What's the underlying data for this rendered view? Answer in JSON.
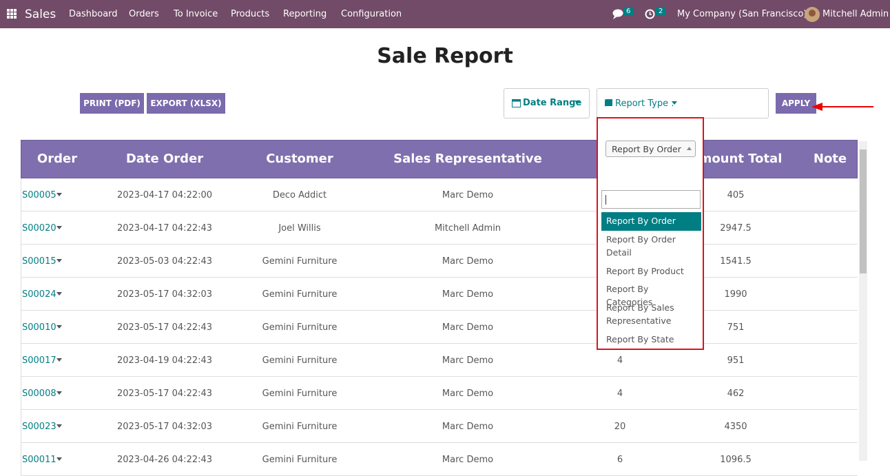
{
  "navbar": {
    "app": "Sales",
    "menu": [
      "Dashboard",
      "Orders",
      "To Invoice",
      "Products",
      "Reporting",
      "Configuration"
    ],
    "messages_badge": 6,
    "activities_badge": 2,
    "company": "My Company (San Francisco)",
    "user": "Mitchell Admin"
  },
  "title": "Sale Report",
  "toolbar": {
    "print": "PRINT (PDF)",
    "export": "EXPORT (XLSX)",
    "date_range": "Date Range",
    "report_type": "Report Type :",
    "apply": "APPLY"
  },
  "dropdown": {
    "selected": "Report By Order",
    "options": [
      "Report By Order",
      "Report By Order Detail",
      "Report By Product",
      "Report By Categories",
      "Report By Sales Representative",
      "Report By State"
    ]
  },
  "table": {
    "headers": [
      "Order",
      "Date Order",
      "Customer",
      "Sales Representative",
      "Amount Total",
      "Note"
    ],
    "rows": [
      [
        "S00005",
        "2023-04-17 04:22:00",
        "Deco Addict",
        "Marc Demo",
        null,
        405
      ],
      [
        "S00020",
        "2023-04-17 04:22:43",
        "Joel Willis",
        "Mitchell Admin",
        null,
        2947.5
      ],
      [
        "S00015",
        "2023-05-03 04:22:43",
        "Gemini Furniture",
        "Marc Demo",
        null,
        1541.5
      ],
      [
        "S00024",
        "2023-05-17 04:32:03",
        "Gemini Furniture",
        "Marc Demo",
        null,
        1990
      ],
      [
        "S00010",
        "2023-05-17 04:22:43",
        "Gemini Furniture",
        "Marc Demo",
        null,
        751
      ],
      [
        "S00017",
        "2023-04-19 04:22:43",
        "Gemini Furniture",
        "Marc Demo",
        4,
        951
      ],
      [
        "S00008",
        "2023-05-17 04:22:43",
        "Gemini Furniture",
        "Marc Demo",
        4,
        462
      ],
      [
        "S00023",
        "2023-05-17 04:32:03",
        "Gemini Furniture",
        "Marc Demo",
        20,
        4350
      ],
      [
        "S00011",
        "2023-04-26 04:22:43",
        "Gemini Furniture",
        "Marc Demo",
        6,
        1096.5
      ]
    ]
  }
}
